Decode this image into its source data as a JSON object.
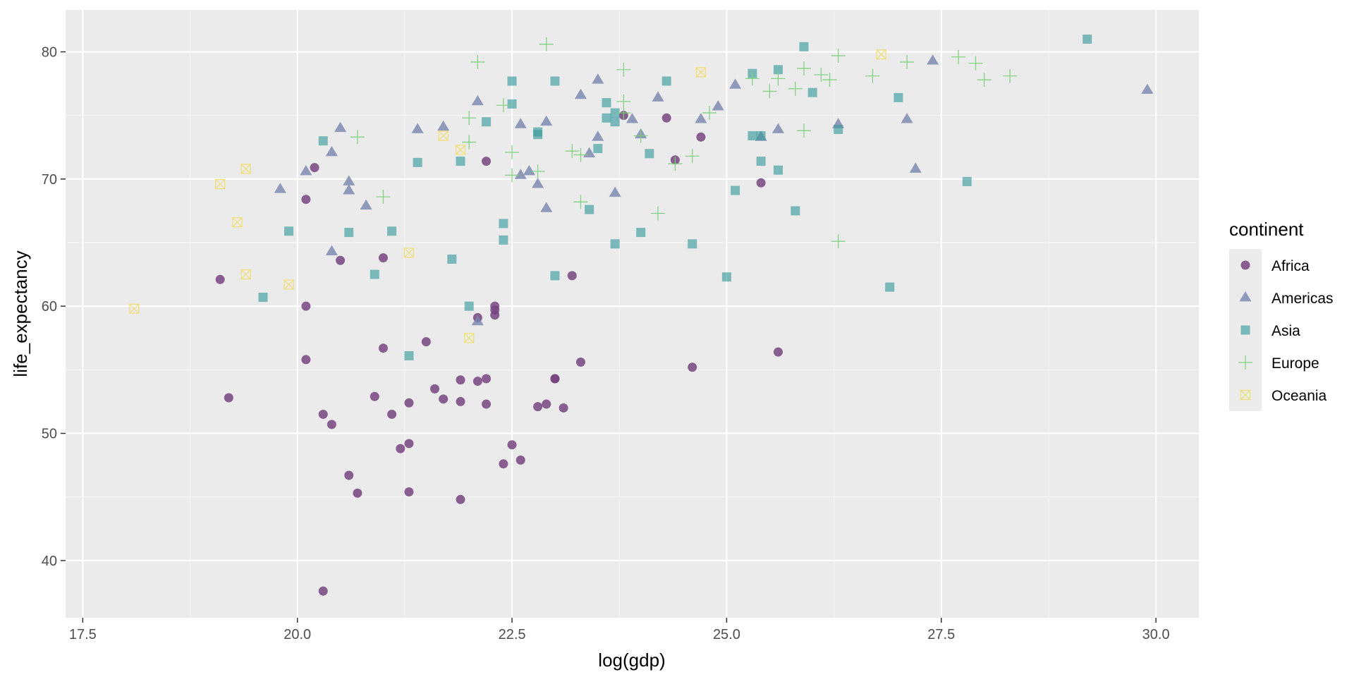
{
  "chart_data": {
    "type": "scatter",
    "title": "",
    "xlabel": "log(gdp)",
    "ylabel": "life_expectancy",
    "xlim": [
      17.3,
      30.5
    ],
    "ylim": [
      35.5,
      83.3
    ],
    "xticks": [
      17.5,
      20.0,
      22.5,
      25.0,
      27.5,
      30.0
    ],
    "xtick_labels": [
      "17.5",
      "20.0",
      "22.5",
      "25.0",
      "27.5",
      "30.0"
    ],
    "yticks": [
      40,
      50,
      60,
      70,
      80
    ],
    "ytick_labels": [
      "40",
      "50",
      "60",
      "70",
      "80"
    ],
    "grid": true,
    "legend": {
      "title": "continent",
      "position": "right"
    },
    "series": [
      {
        "name": "Africa",
        "shape": "circle",
        "color": "#75457F",
        "points": [
          [
            19.1,
            62.1
          ],
          [
            19.2,
            52.8
          ],
          [
            20.1,
            68.4
          ],
          [
            20.1,
            55.8
          ],
          [
            20.1,
            60.0
          ],
          [
            20.2,
            70.9
          ],
          [
            20.3,
            51.5
          ],
          [
            20.3,
            37.6
          ],
          [
            20.4,
            50.7
          ],
          [
            20.5,
            63.6
          ],
          [
            20.6,
            46.7
          ],
          [
            20.7,
            45.3
          ],
          [
            20.9,
            52.9
          ],
          [
            21.0,
            56.7
          ],
          [
            21.0,
            63.8
          ],
          [
            21.1,
            51.5
          ],
          [
            21.2,
            48.8
          ],
          [
            21.3,
            49.2
          ],
          [
            21.3,
            45.4
          ],
          [
            21.3,
            52.4
          ],
          [
            21.5,
            57.2
          ],
          [
            21.6,
            53.5
          ],
          [
            21.7,
            52.7
          ],
          [
            21.9,
            54.2
          ],
          [
            21.9,
            52.5
          ],
          [
            21.9,
            44.8
          ],
          [
            22.1,
            59.1
          ],
          [
            22.1,
            54.1
          ],
          [
            22.2,
            54.3
          ],
          [
            22.2,
            52.3
          ],
          [
            22.2,
            71.4
          ],
          [
            22.3,
            59.7
          ],
          [
            22.3,
            60.0
          ],
          [
            22.3,
            59.3
          ],
          [
            22.4,
            47.6
          ],
          [
            22.5,
            49.1
          ],
          [
            22.6,
            47.9
          ],
          [
            22.8,
            52.1
          ],
          [
            22.9,
            52.3
          ],
          [
            23.0,
            54.3
          ],
          [
            23.0,
            54.3
          ],
          [
            23.1,
            52.0
          ],
          [
            23.2,
            62.4
          ],
          [
            23.3,
            55.6
          ],
          [
            23.8,
            75.0
          ],
          [
            24.3,
            74.8
          ],
          [
            24.4,
            71.5
          ],
          [
            24.6,
            55.2
          ],
          [
            24.7,
            73.3
          ],
          [
            25.4,
            69.7
          ],
          [
            25.6,
            56.4
          ]
        ]
      },
      {
        "name": "Americas",
        "shape": "triangle",
        "color": "#7885AD",
        "points": [
          [
            19.8,
            69.2
          ],
          [
            20.1,
            70.6
          ],
          [
            20.4,
            72.1
          ],
          [
            20.4,
            64.3
          ],
          [
            20.5,
            74.0
          ],
          [
            20.6,
            69.1
          ],
          [
            20.6,
            69.8
          ],
          [
            20.8,
            67.9
          ],
          [
            21.4,
            73.9
          ],
          [
            21.7,
            74.1
          ],
          [
            22.1,
            76.1
          ],
          [
            22.1,
            58.8
          ],
          [
            22.6,
            70.3
          ],
          [
            22.6,
            74.3
          ],
          [
            22.7,
            70.6
          ],
          [
            22.8,
            69.6
          ],
          [
            22.9,
            67.7
          ],
          [
            22.9,
            74.5
          ],
          [
            23.3,
            76.6
          ],
          [
            23.4,
            72.0
          ],
          [
            23.5,
            73.3
          ],
          [
            23.5,
            77.8
          ],
          [
            23.7,
            68.9
          ],
          [
            23.9,
            74.7
          ],
          [
            24.0,
            73.5
          ],
          [
            24.2,
            76.4
          ],
          [
            24.7,
            74.7
          ],
          [
            24.9,
            75.7
          ],
          [
            25.1,
            77.4
          ],
          [
            25.4,
            73.3
          ],
          [
            25.6,
            73.9
          ],
          [
            26.3,
            74.3
          ],
          [
            27.1,
            74.7
          ],
          [
            27.2,
            70.8
          ],
          [
            27.4,
            79.3
          ],
          [
            29.9,
            77.0
          ]
        ]
      },
      {
        "name": "Asia",
        "shape": "square",
        "color": "#3A9C9C",
        "points": [
          [
            19.6,
            60.7
          ],
          [
            19.9,
            65.9
          ],
          [
            20.3,
            73.0
          ],
          [
            20.6,
            65.8
          ],
          [
            20.9,
            62.5
          ],
          [
            21.1,
            65.9
          ],
          [
            21.3,
            56.1
          ],
          [
            21.4,
            71.3
          ],
          [
            21.8,
            63.7
          ],
          [
            21.9,
            71.4
          ],
          [
            22.0,
            60.0
          ],
          [
            22.2,
            74.5
          ],
          [
            22.4,
            66.5
          ],
          [
            22.4,
            65.2
          ],
          [
            22.5,
            75.9
          ],
          [
            22.5,
            77.7
          ],
          [
            22.8,
            73.7
          ],
          [
            22.8,
            73.5
          ],
          [
            23.0,
            62.4
          ],
          [
            23.0,
            77.7
          ],
          [
            23.4,
            67.6
          ],
          [
            23.5,
            72.4
          ],
          [
            23.6,
            76.0
          ],
          [
            23.6,
            74.8
          ],
          [
            23.7,
            64.9
          ],
          [
            23.7,
            74.5
          ],
          [
            23.7,
            75.2
          ],
          [
            24.0,
            65.8
          ],
          [
            24.1,
            72.0
          ],
          [
            24.3,
            77.7
          ],
          [
            24.6,
            64.9
          ],
          [
            25.0,
            62.3
          ],
          [
            25.1,
            69.1
          ],
          [
            25.3,
            78.3
          ],
          [
            25.3,
            73.4
          ],
          [
            25.4,
            71.4
          ],
          [
            25.4,
            73.4
          ],
          [
            25.6,
            70.7
          ],
          [
            25.6,
            78.6
          ],
          [
            25.8,
            67.5
          ],
          [
            25.9,
            80.4
          ],
          [
            26.0,
            76.8
          ],
          [
            26.3,
            73.9
          ],
          [
            26.9,
            61.5
          ],
          [
            27.0,
            76.4
          ],
          [
            27.8,
            69.8
          ],
          [
            29.2,
            81.0
          ]
        ]
      },
      {
        "name": "Europe",
        "shape": "cross",
        "color": "#7ACF7A",
        "points": [
          [
            20.7,
            73.3
          ],
          [
            21.0,
            68.6
          ],
          [
            22.0,
            72.9
          ],
          [
            22.0,
            74.8
          ],
          [
            22.1,
            79.2
          ],
          [
            22.4,
            75.8
          ],
          [
            22.5,
            70.3
          ],
          [
            22.5,
            72.1
          ],
          [
            22.8,
            70.6
          ],
          [
            22.9,
            80.6
          ],
          [
            23.2,
            72.2
          ],
          [
            23.3,
            68.2
          ],
          [
            23.3,
            71.9
          ],
          [
            23.8,
            78.6
          ],
          [
            23.8,
            76.1
          ],
          [
            23.8,
            75.2
          ],
          [
            24.0,
            73.4
          ],
          [
            24.2,
            67.3
          ],
          [
            24.4,
            71.2
          ],
          [
            24.6,
            71.8
          ],
          [
            24.8,
            75.2
          ],
          [
            25.3,
            77.9
          ],
          [
            25.5,
            76.9
          ],
          [
            25.6,
            77.9
          ],
          [
            25.8,
            77.1
          ],
          [
            25.9,
            78.7
          ],
          [
            25.9,
            73.8
          ],
          [
            26.1,
            78.2
          ],
          [
            26.2,
            77.8
          ],
          [
            26.3,
            79.7
          ],
          [
            26.3,
            65.1
          ],
          [
            26.7,
            78.1
          ],
          [
            27.1,
            79.2
          ],
          [
            27.7,
            79.6
          ],
          [
            27.9,
            79.1
          ],
          [
            28.0,
            77.8
          ],
          [
            28.3,
            78.1
          ]
        ]
      },
      {
        "name": "Oceania",
        "shape": "square-x",
        "color": "#F2E07A",
        "points": [
          [
            18.1,
            59.8
          ],
          [
            19.1,
            69.6
          ],
          [
            19.3,
            66.6
          ],
          [
            19.4,
            70.8
          ],
          [
            19.4,
            62.5
          ],
          [
            19.9,
            61.7
          ],
          [
            21.3,
            64.2
          ],
          [
            21.7,
            73.4
          ],
          [
            21.9,
            72.3
          ],
          [
            22.0,
            57.5
          ],
          [
            24.7,
            78.4
          ],
          [
            26.8,
            79.8
          ]
        ]
      }
    ]
  }
}
